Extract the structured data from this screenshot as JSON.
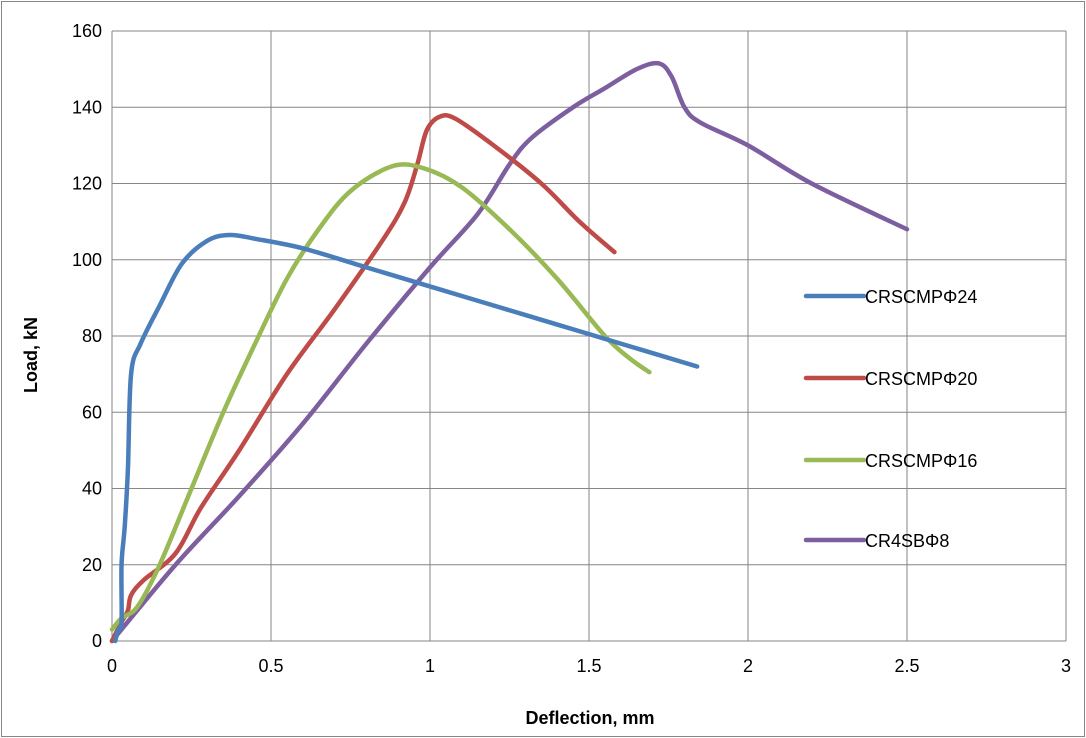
{
  "chart_data": {
    "type": "line",
    "title": "",
    "xlabel": "Deflection, mm",
    "ylabel": "Load, kN",
    "xlim": [
      0,
      3
    ],
    "ylim": [
      0,
      160
    ],
    "x_ticks": [
      0,
      0.5,
      1,
      1.5,
      2,
      2.5,
      3
    ],
    "x_tick_labels": [
      "0",
      "0.5",
      "1",
      "1.5",
      "2",
      "2.5",
      "3"
    ],
    "y_ticks": [
      0,
      20,
      40,
      60,
      80,
      100,
      120,
      140,
      160
    ],
    "y_tick_labels": [
      "0",
      "20",
      "40",
      "60",
      "80",
      "100",
      "120",
      "140",
      "160"
    ],
    "grid": true,
    "legend_position": "right",
    "series": [
      {
        "name": "CRSCMPΦ24",
        "color": "#4a7ebb",
        "points": [
          [
            0.01,
            0
          ],
          [
            0.02,
            3
          ],
          [
            0.03,
            5
          ],
          [
            0.03,
            20
          ],
          [
            0.04,
            30
          ],
          [
            0.05,
            45
          ],
          [
            0.06,
            70
          ],
          [
            0.09,
            78
          ],
          [
            0.15,
            88
          ],
          [
            0.22,
            99
          ],
          [
            0.3,
            105
          ],
          [
            0.37,
            106.5
          ],
          [
            0.45,
            105.5
          ],
          [
            0.6,
            103
          ],
          [
            0.8,
            98
          ],
          [
            1.0,
            93
          ],
          [
            1.2,
            88
          ],
          [
            1.4,
            83
          ],
          [
            1.6,
            78
          ],
          [
            1.84,
            72
          ]
        ]
      },
      {
        "name": "CRSCMPΦ20",
        "color": "#be4b48",
        "points": [
          [
            0,
            0
          ],
          [
            0.03,
            5
          ],
          [
            0.05,
            8
          ],
          [
            0.06,
            12
          ],
          [
            0.1,
            16
          ],
          [
            0.2,
            23
          ],
          [
            0.28,
            35
          ],
          [
            0.4,
            50
          ],
          [
            0.55,
            70
          ],
          [
            0.7,
            87
          ],
          [
            0.85,
            105
          ],
          [
            0.92,
            115
          ],
          [
            0.96,
            125
          ],
          [
            0.99,
            134
          ],
          [
            1.03,
            137.5
          ],
          [
            1.08,
            137
          ],
          [
            1.2,
            130
          ],
          [
            1.35,
            120
          ],
          [
            1.47,
            110
          ],
          [
            1.58,
            102
          ]
        ]
      },
      {
        "name": "CRSCMPΦ16",
        "color": "#98b954",
        "points": [
          [
            0,
            3
          ],
          [
            0.03,
            6
          ],
          [
            0.08,
            9
          ],
          [
            0.15,
            20
          ],
          [
            0.25,
            40
          ],
          [
            0.35,
            60
          ],
          [
            0.45,
            78
          ],
          [
            0.55,
            95
          ],
          [
            0.65,
            108
          ],
          [
            0.75,
            118
          ],
          [
            0.88,
            124.5
          ],
          [
            0.98,
            124
          ],
          [
            1.1,
            119
          ],
          [
            1.25,
            108
          ],
          [
            1.4,
            95
          ],
          [
            1.55,
            80
          ],
          [
            1.63,
            74
          ],
          [
            1.69,
            70.5
          ]
        ]
      },
      {
        "name": "CR4SBΦ8",
        "color": "#7d5fa0",
        "points": [
          [
            0,
            0
          ],
          [
            0.2,
            20
          ],
          [
            0.4,
            38
          ],
          [
            0.6,
            57
          ],
          [
            0.8,
            78
          ],
          [
            1.0,
            98
          ],
          [
            1.15,
            112
          ],
          [
            1.25,
            125
          ],
          [
            1.32,
            132
          ],
          [
            1.45,
            140
          ],
          [
            1.55,
            145
          ],
          [
            1.65,
            150
          ],
          [
            1.72,
            151.5
          ],
          [
            1.76,
            148
          ],
          [
            1.8,
            140
          ],
          [
            1.85,
            136
          ],
          [
            2.0,
            130
          ],
          [
            2.2,
            120
          ],
          [
            2.5,
            108
          ]
        ]
      }
    ]
  }
}
